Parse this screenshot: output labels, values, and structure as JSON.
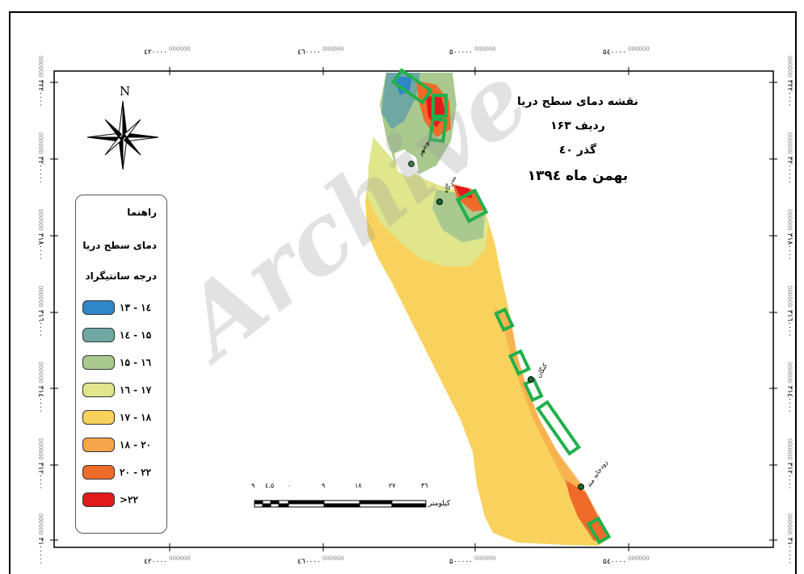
{
  "title": {
    "line1": "نقشه دمای سطح دریا",
    "line2": "ردیف ۱۶۳",
    "line3": "گذر ٤٠",
    "line4": "بهمن ماه ۱۳۹٤"
  },
  "north_label": "N",
  "legend": {
    "heading": "راهنما",
    "subtitle": "دمای سطح دریا",
    "unit": "درجه سانتیگراد",
    "classes": [
      {
        "label": "۱۳ - ۱٤",
        "color": "#2f86c9"
      },
      {
        "label": "۱٤ - ۱۵",
        "color": "#6fa7a3"
      },
      {
        "label": "۱۵ - ۱٦",
        "color": "#a9c98f"
      },
      {
        "label": "۱٦ - ۱۷",
        "color": "#dfe68b"
      },
      {
        "label": "۱۷ - ۱۸",
        "color": "#f8d25c"
      },
      {
        "label": "۱۸ - ۲۰",
        "color": "#f6a54a"
      },
      {
        "label": "۲۰ - ۲۲",
        "color": "#ee6b2a"
      },
      {
        "label": ">۲۲",
        "color": "#e31a1c"
      }
    ]
  },
  "x_coords": [
    {
      "main": "٤۲۰٠٠٠",
      "sup": "000000"
    },
    {
      "main": "٤٦٠٠٠٠",
      "sup": "000000"
    },
    {
      "main": "۵٠٠٠٠٠",
      "sup": "000000"
    },
    {
      "main": "۵٤٠٠٠٠",
      "sup": "000000"
    }
  ],
  "y_coords": [
    {
      "main": "۳۲۲٠٠٠٠",
      "sup": "000000"
    },
    {
      "main": "۳۲٠٠٠٠٠",
      "sup": "000000"
    },
    {
      "main": "۳۱۸٠٠٠٠",
      "sup": "000000"
    },
    {
      "main": "۳۱٦٠٠٠٠",
      "sup": "000000"
    },
    {
      "main": "۳۱٤٠٠٠٠",
      "sup": "000000"
    },
    {
      "main": "۳۱۲٠٠٠٠",
      "sup": "000000"
    },
    {
      "main": "۳۱٠٠٠٠٠",
      "sup": "000000"
    }
  ],
  "scale_bar": {
    "ticks": [
      "۹",
      "٤.۵",
      "٠",
      "۹",
      "۱۸",
      "۲۷",
      "۳٦"
    ],
    "unit": "کیلومتر"
  },
  "places": {
    "bushehr": "بوشهر",
    "bandargah": "بندرگاه",
    "kangan": "کنگان",
    "rudkhaneh_mand": "رودخانه مند"
  },
  "watermark": "Archive",
  "colors": {
    "frame": "#000000",
    "highlight_boxes": "#21b04b"
  }
}
